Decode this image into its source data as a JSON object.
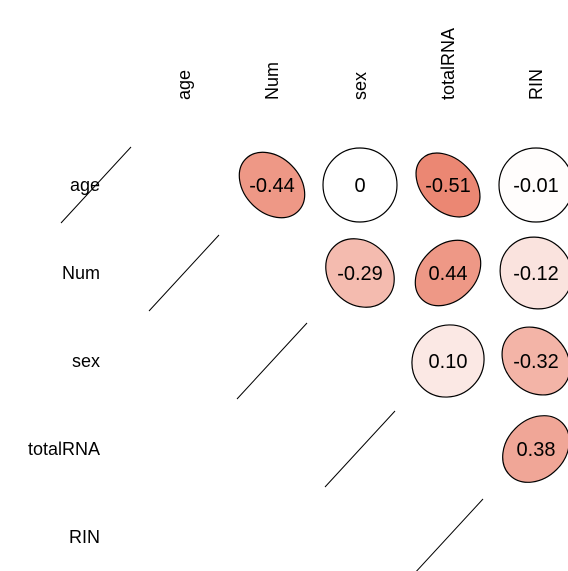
{
  "chart_data": {
    "type": "heatmap",
    "variables": [
      "age",
      "Num",
      "sex",
      "totalRNA",
      "RIN"
    ],
    "values": [
      [
        null,
        -0.44,
        0,
        -0.51,
        -0.01
      ],
      [
        null,
        null,
        -0.29,
        0.44,
        -0.12
      ],
      [
        null,
        null,
        null,
        0.1,
        -0.32
      ],
      [
        null,
        null,
        null,
        null,
        0.38
      ],
      [
        null,
        null,
        null,
        null,
        null
      ]
    ],
    "cell_labels": [
      [
        null,
        "-0.44",
        "0",
        "-0.51",
        "-0.01"
      ],
      [
        null,
        null,
        "-0.29",
        "0.44",
        "-0.12"
      ],
      [
        null,
        null,
        null,
        "0.10",
        "-0.32"
      ],
      [
        null,
        null,
        null,
        null,
        "0.38"
      ],
      [
        null,
        null,
        null,
        null,
        null
      ]
    ],
    "shape": "ellipse",
    "upper_triangle_only": true,
    "diagonal": "line",
    "colors": {
      "base": "#ffffff",
      "fill": "#e8725a",
      "outline": "#000000"
    }
  }
}
